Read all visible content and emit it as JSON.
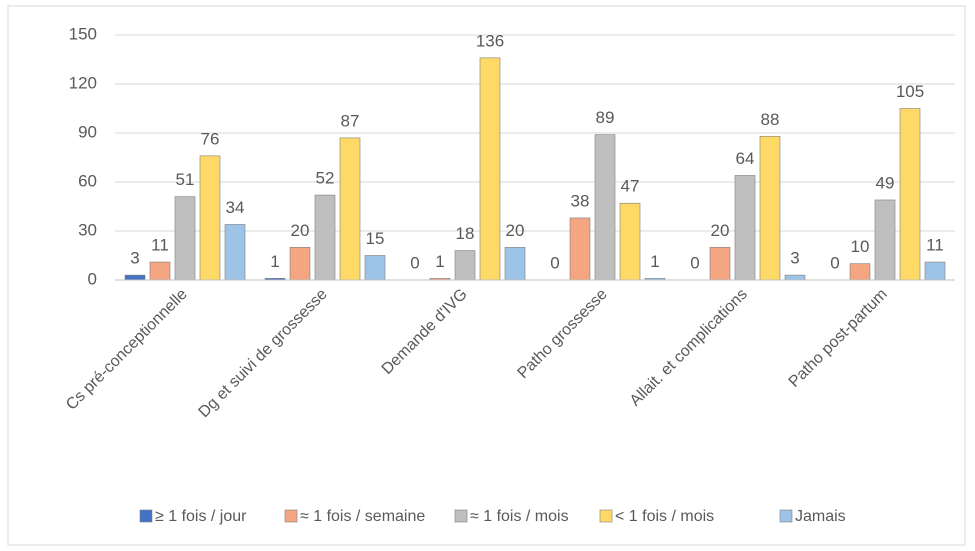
{
  "chart_data": {
    "type": "bar",
    "categories": [
      "Cs pré-conceptionnelle",
      "Dg et suivi de grossesse",
      "Demande d'IVG",
      "Patho grossesse",
      "Allait. et complications",
      "Patho post-partum"
    ],
    "series": [
      {
        "name": "≥ 1 fois / jour",
        "color": "#4472c4",
        "values": [
          3,
          1,
          0,
          0,
          0,
          0
        ]
      },
      {
        "name": "≈ 1 fois / semaine",
        "color": "#f4a582",
        "values": [
          11,
          20,
          1,
          38,
          20,
          10
        ]
      },
      {
        "name": "≈ 1 fois / mois",
        "color": "#bfbfbf",
        "values": [
          51,
          52,
          18,
          89,
          64,
          49
        ]
      },
      {
        "name": "< 1 fois / mois",
        "color": "#ffd966",
        "values": [
          76,
          87,
          136,
          47,
          88,
          105
        ]
      },
      {
        "name": "Jamais",
        "color": "#9dc3e6",
        "values": [
          34,
          15,
          20,
          1,
          3,
          11
        ]
      }
    ],
    "ylim": [
      0,
      150
    ],
    "yticks": [
      0,
      30,
      60,
      90,
      120,
      150
    ],
    "grid": true,
    "legend": "bottom"
  }
}
